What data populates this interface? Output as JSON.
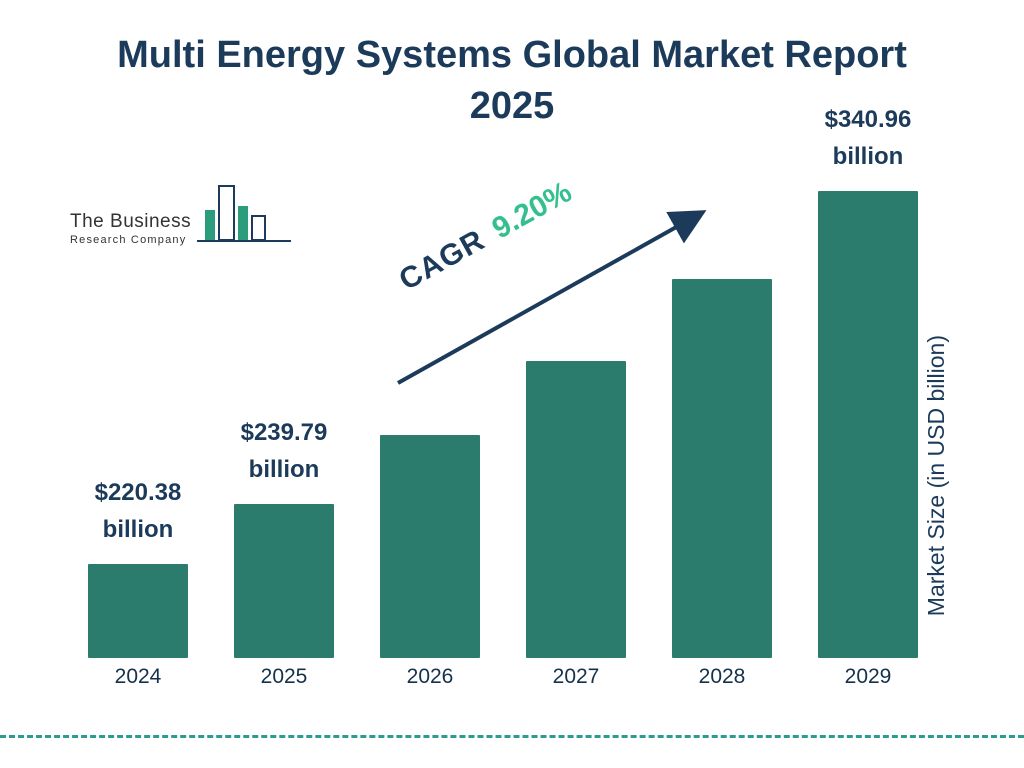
{
  "title": "Multi Energy Systems Global Market Report 2025",
  "logo": {
    "line1": "The Business",
    "line2": "Research Company"
  },
  "cagr": {
    "prefix": "CAGR",
    "value": "9.20%"
  },
  "colors": {
    "navy": "#1c3b5a",
    "bar_teal": "#2b7c6c",
    "accent_green": "#34c08e",
    "dashed_rule_teal": "#2a9d8f"
  },
  "chart_data": {
    "type": "bar",
    "title": "Multi Energy Systems Global Market Report 2025",
    "categories": [
      "2024",
      "2025",
      "2026",
      "2027",
      "2028",
      "2029"
    ],
    "values": [
      220.38,
      239.79,
      261.85,
      285.94,
      312.25,
      340.96
    ],
    "bar_labels": [
      "$220.38 billion",
      "$239.79 billion",
      null,
      null,
      null,
      "$340.96 billion"
    ],
    "cagr": "9.20%",
    "xlabel": "",
    "ylabel": "Market Size (in USD billion)",
    "ylim": [
      190,
      345
    ],
    "grid": false,
    "legend": false,
    "bar_color": "#2b7c6c"
  }
}
